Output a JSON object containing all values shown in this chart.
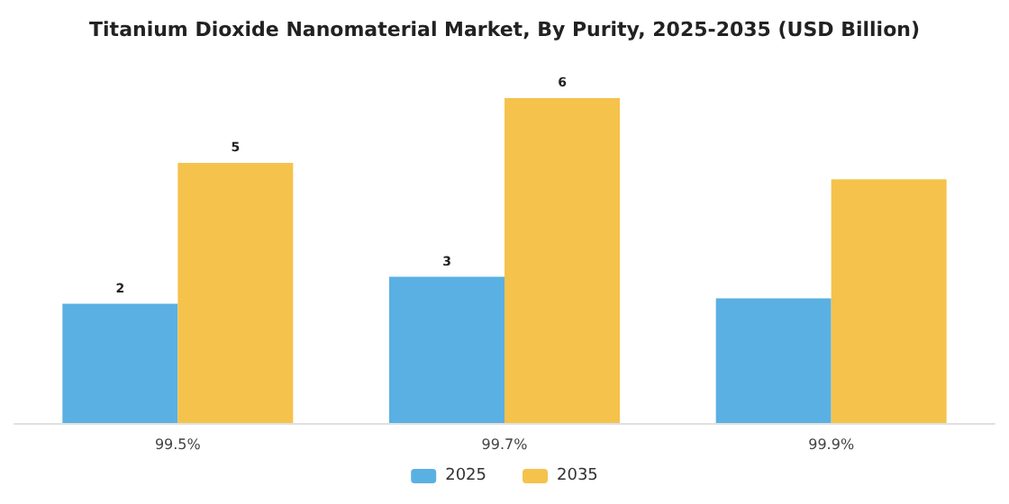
{
  "chart_data": {
    "type": "bar",
    "title": "Titanium Dioxide Nanomaterial Market, By Purity, 2025-2035 (USD Billion)",
    "categories": [
      "99.5%",
      "99.7%",
      "99.9%"
    ],
    "series": [
      {
        "name": "2025",
        "color": "#5ab0e2",
        "values": [
          2.2,
          2.7,
          2.3
        ],
        "value_labels": [
          "2",
          "3",
          null
        ]
      },
      {
        "name": "2035",
        "color": "#f5c24c",
        "values": [
          4.8,
          6.0,
          4.5
        ],
        "value_labels": [
          "5",
          "6",
          null
        ]
      }
    ],
    "legend": "bottom"
  }
}
